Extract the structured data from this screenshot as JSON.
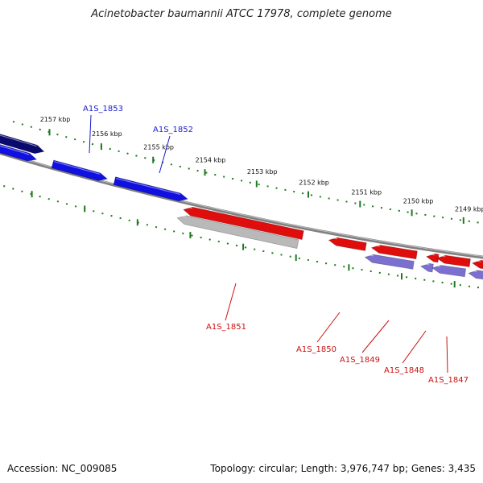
{
  "title": "Acinetobacter baumannii ATCC 17978, complete genome",
  "footer": {
    "accession": "Accession: NC_009085",
    "topology": "Topology: circular; Length: 3,976,747 bp; Genes: 3,435"
  },
  "colors": {
    "background": "#ffffff",
    "backbone": "#808080",
    "tick": "#1e7a1e",
    "forward_dark": "#0a0a6e",
    "forward": "#1010e0",
    "reverse": "#e00d0d",
    "reverse_pseudo": "#b9b9b9",
    "reverse_lavender": "#7b6fd0",
    "label_forward": "#1a1ad0",
    "label_reverse": "#cc1010"
  },
  "ticks": [
    {
      "label": "2157 kbp"
    },
    {
      "label": "2156 kbp"
    },
    {
      "label": "2155 kbp"
    },
    {
      "label": "2154 kbp"
    },
    {
      "label": "2153 kbp"
    },
    {
      "label": "2152 kbp"
    },
    {
      "label": "2151 kbp"
    },
    {
      "label": "2150 kbp"
    },
    {
      "label": "2149 kbp"
    }
  ],
  "gene_labels": [
    {
      "name": "A1S_1853",
      "strand": "forward"
    },
    {
      "name": "A1S_1852",
      "strand": "forward"
    },
    {
      "name": "A1S_1851",
      "strand": "reverse"
    },
    {
      "name": "A1S_1850",
      "strand": "reverse"
    },
    {
      "name": "A1S_1849",
      "strand": "reverse"
    },
    {
      "name": "A1S_1848",
      "strand": "reverse"
    },
    {
      "name": "A1S_1847",
      "strand": "reverse"
    }
  ]
}
